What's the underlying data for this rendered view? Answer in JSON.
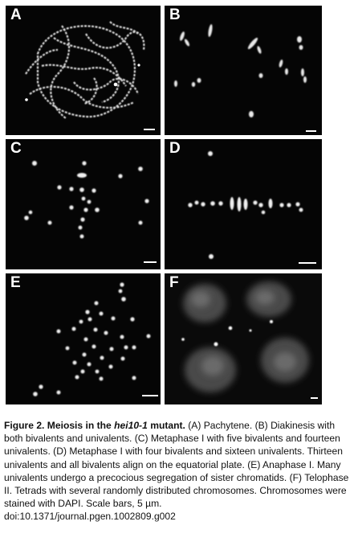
{
  "figure": {
    "panels": [
      {
        "id": "A",
        "label": "A",
        "stage": "Pachytene"
      },
      {
        "id": "B",
        "label": "B",
        "stage": "Diakinesis"
      },
      {
        "id": "C",
        "label": "C",
        "stage": "Metaphase I"
      },
      {
        "id": "D",
        "label": "D",
        "stage": "Metaphase I"
      },
      {
        "id": "E",
        "label": "E",
        "stage": "Anaphase I"
      },
      {
        "id": "F",
        "label": "F",
        "stage": "Telophase II"
      }
    ]
  },
  "caption": {
    "fig_number": "Figure 2.",
    "title_pre": "Meiosis in the",
    "gene": "hei10-1",
    "title_post": "mutant.",
    "body": "(A) Pachytene. (B) Diakinesis with both bivalents and univalents. (C) Metaphase I with five bivalents and fourteen univalents. (D) Metaphase I with four bivalents and sixteen univalents. Thirteen univalents and all bivalents align on the equatorial plate. (E) Anaphase I. Many univalents undergo a precocious segregation of sister chromatids. (F) Telophase II. Tetrads with several randomly distributed chromosomes. Chromosomes were stained with DAPI. Scale bars, 5 µm.",
    "doi": "doi:10.1371/journal.pgen.1002809.g002"
  },
  "colors": {
    "panel_bg": "#050505",
    "signal": "#ffffff",
    "text": "#111111"
  }
}
